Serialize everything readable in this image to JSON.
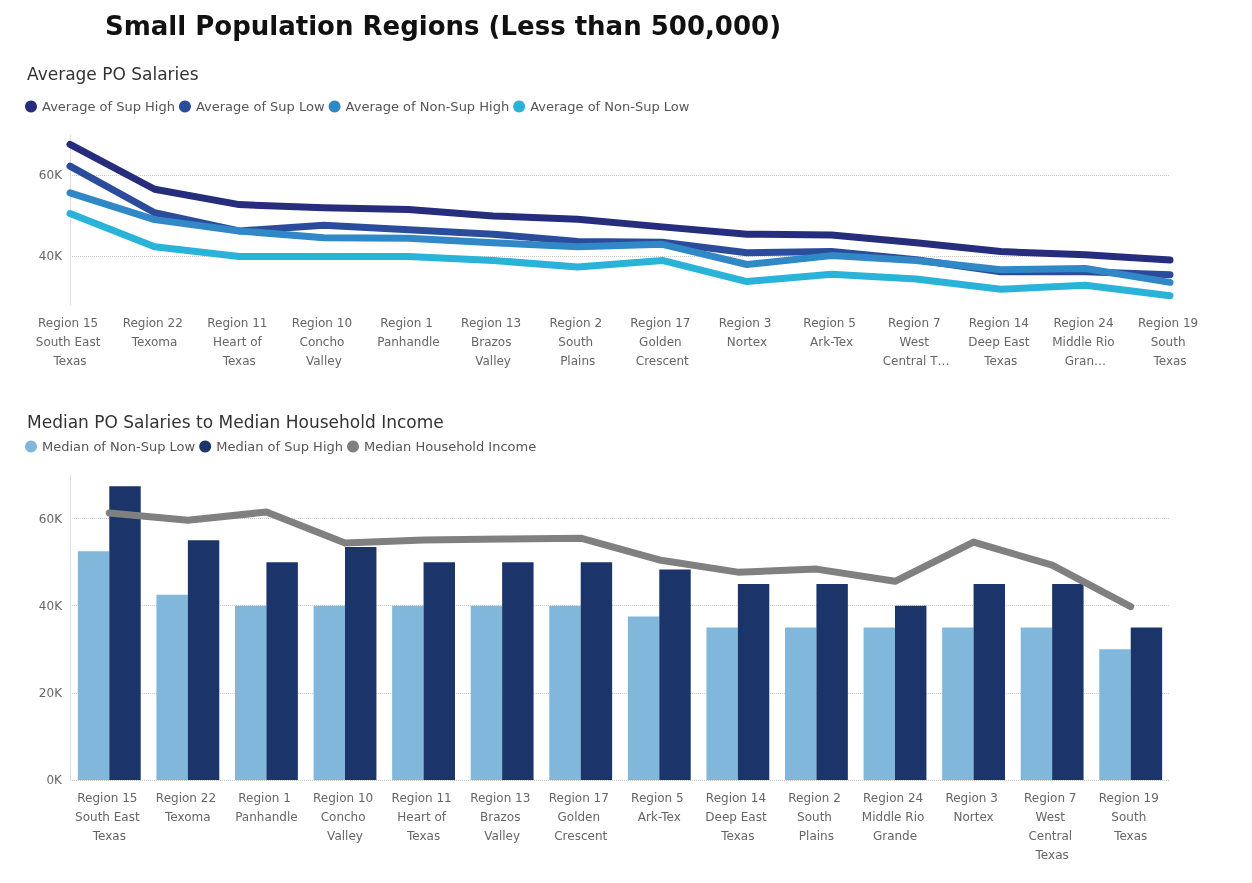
{
  "chart_data": [
    {
      "type": "line",
      "title": "Small Population Regions (Less than 500,000)",
      "subtitle": "Average PO Salaries",
      "categories": [
        "Region 15 South East Texas",
        "Region 22 Texoma",
        "Region 11 Heart of Texas",
        "Region 10 Concho Valley",
        "Region 1 Panhandle",
        "Region 13 Brazos Valley",
        "Region 2 South Plains",
        "Region 17 Golden Crescent",
        "Region 3 Nortex",
        "Region 5 Ark-Tex",
        "Region 7 West Central T…",
        "Region 14 Deep East Texas",
        "Region 24 Middle Rio Gran…",
        "Region 19 South Texas"
      ],
      "series": [
        {
          "name": "Average of Sup High",
          "color": "#262d7d",
          "values": [
            67700,
            56600,
            52800,
            52000,
            51600,
            50000,
            49200,
            47300,
            45500,
            45300,
            43400,
            41200,
            40400,
            39100
          ]
        },
        {
          "name": "Average of Sup Low",
          "color": "#2b4c9b",
          "values": [
            62300,
            50800,
            46300,
            47700,
            46600,
            45500,
            43700,
            43500,
            40900,
            41200,
            39200,
            36200,
            36200,
            35500
          ]
        },
        {
          "name": "Average of Non-Sup High",
          "color": "#3088c6",
          "values": [
            55700,
            49100,
            46300,
            44600,
            44500,
            43400,
            42400,
            43000,
            38000,
            40200,
            39000,
            36700,
            37000,
            33600
          ]
        },
        {
          "name": "Average of Non-Sup Low",
          "color": "#2ab3d8",
          "values": [
            50600,
            42400,
            40000,
            40000,
            40000,
            39000,
            37400,
            39000,
            33800,
            35600,
            34400,
            31900,
            32900,
            30300
          ]
        }
      ],
      "ylim": [
        28000,
        70000
      ],
      "yticks": [
        {
          "value": 40000,
          "label": "40K"
        },
        {
          "value": 60000,
          "label": "60K"
        }
      ],
      "grid": "y",
      "legend": "top left",
      "marker": "none",
      "line_style": "solid"
    },
    {
      "type": "bar",
      "title": "Median PO Salaries to Median Household Income",
      "categories": [
        "Region 15 South East Texas",
        "Region 22 Texoma",
        "Region 1 Panhandle",
        "Region 10 Concho Valley",
        "Region 11 Heart of Texas",
        "Region 13 Brazos Valley",
        "Region 17 Golden Crescent",
        "Region 5 Ark-Tex",
        "Region 14 Deep East Texas",
        "Region 2 South Plains",
        "Region 24 Middle Rio Grande",
        "Region 3 Nortex",
        "Region 7 West Central Texas",
        "Region 19 South Texas"
      ],
      "series": [
        {
          "name": "Median of Non-Sup Low",
          "color": "#82b7dc",
          "values": [
            52500,
            42500,
            40000,
            40000,
            40000,
            40000,
            40000,
            37500,
            35000,
            35000,
            35000,
            35000,
            35000,
            30000
          ]
        },
        {
          "name": "Median of Sup High",
          "color": "#1b3469",
          "values": [
            67400,
            55000,
            50000,
            53500,
            50000,
            50000,
            50000,
            48300,
            45000,
            45000,
            40000,
            45000,
            45000,
            35000
          ]
        },
        {
          "name": "Median Household Income",
          "type": "line",
          "color": "#808080",
          "values": [
            61300,
            59600,
            61500,
            54400,
            55100,
            55300,
            55500,
            50500,
            47700,
            48400,
            45600,
            54600,
            49300,
            39800
          ]
        }
      ],
      "ylim": [
        0,
        70000
      ],
      "yticks": [
        {
          "value": 0,
          "label": "0K"
        },
        {
          "value": 20000,
          "label": "20K"
        },
        {
          "value": 40000,
          "label": "40K"
        },
        {
          "value": 60000,
          "label": "60K"
        }
      ],
      "grid": "y",
      "legend": "top left",
      "marker": "none",
      "line_style": "solid"
    }
  ]
}
